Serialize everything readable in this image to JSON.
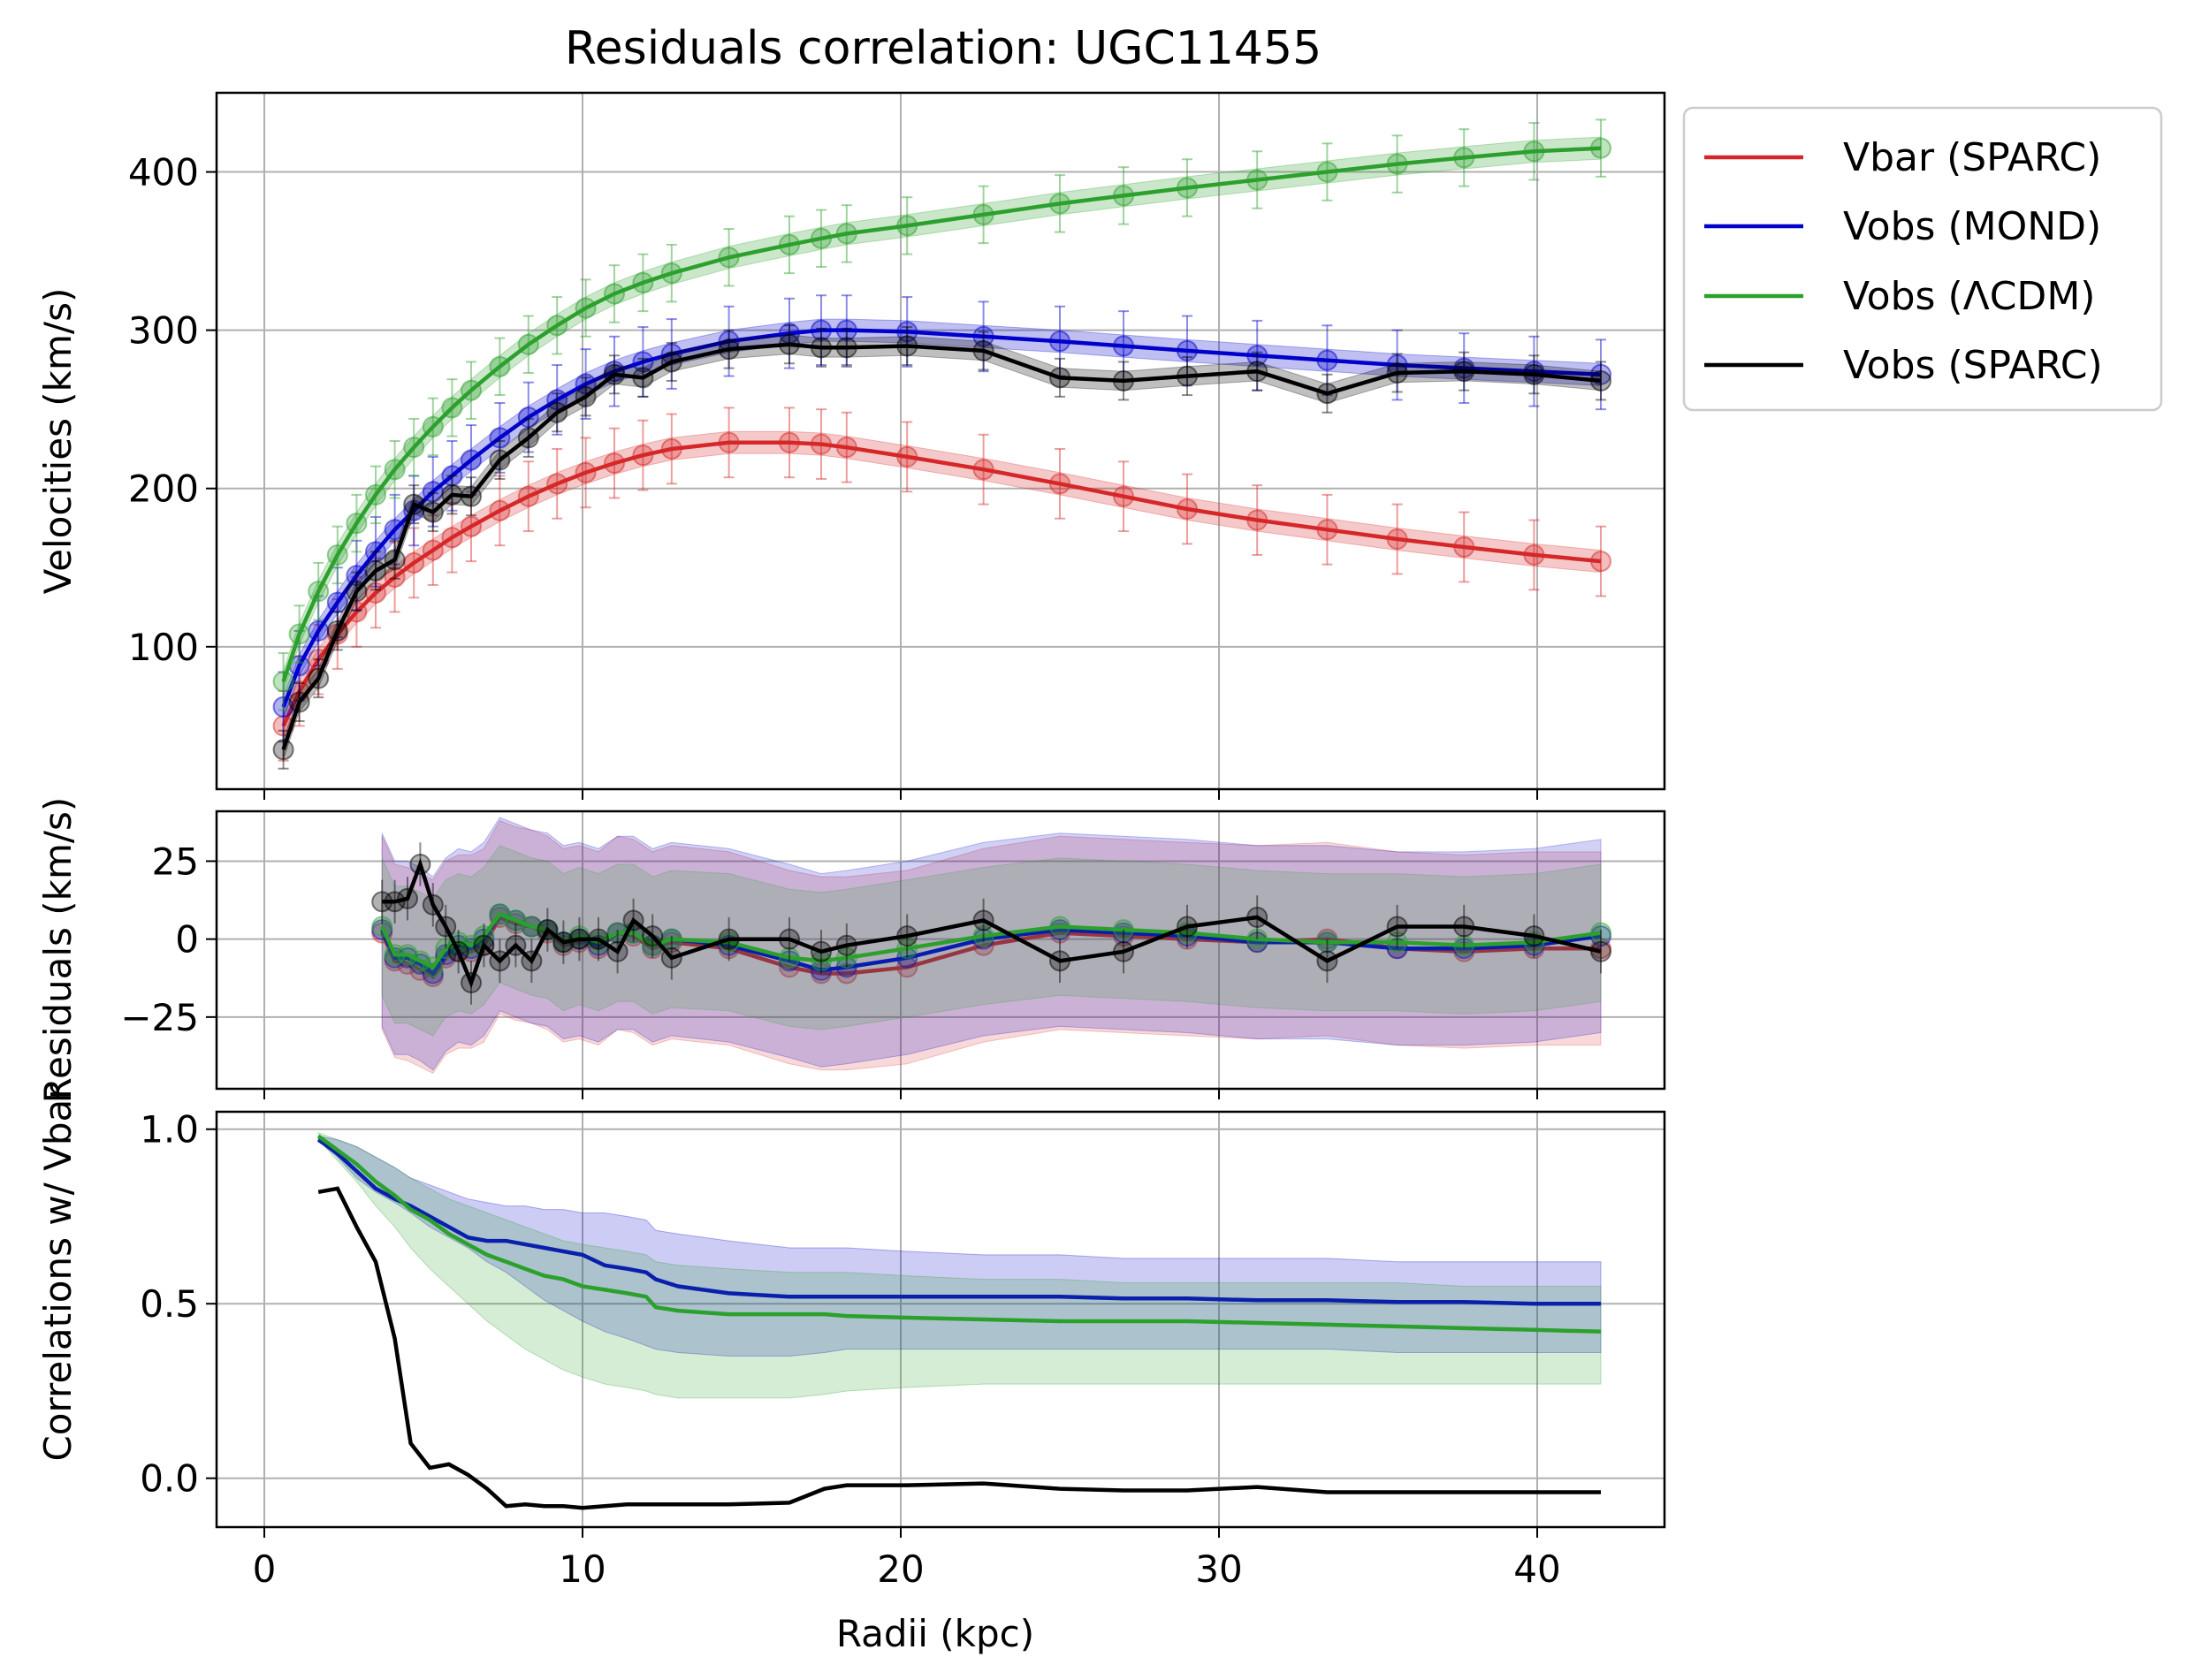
{
  "title": "Residuals correlation: UGC11455",
  "xlabel": "Radii (kpc)",
  "x_ticks": [
    "0",
    "10",
    "20",
    "30",
    "40"
  ],
  "legend": [
    "Vbar (SPARC)",
    "Vobs (MOND)",
    "Vobs (ΛCDM)",
    "Vobs (SPARC)"
  ],
  "colors": {
    "vbar": "#d62728",
    "mond": "#0000cc",
    "lcdm": "#2ca02c",
    "sparc": "#000000"
  },
  "chart_data": [
    {
      "type": "line",
      "panel": "velocities",
      "title": "Residuals correlation: UGC11455",
      "ylabel": "Velocities (km/s)",
      "xlim": [
        -1.5,
        44
      ],
      "ylim": [
        10,
        450
      ],
      "y_ticks": [
        "100",
        "200",
        "300",
        "400"
      ],
      "x": [
        0.6,
        1.1,
        1.7,
        2.3,
        2.9,
        3.5,
        4.1,
        4.7,
        5.3,
        5.9,
        6.5,
        7.4,
        8.3,
        9.2,
        10.1,
        11.0,
        11.9,
        12.8,
        14.6,
        16.5,
        17.5,
        18.3,
        20.2,
        22.6,
        25.0,
        27.0,
        29.0,
        31.2,
        33.4,
        35.6,
        37.7,
        39.9,
        42.0
      ],
      "series": [
        {
          "name": "Vbar (SPARC)",
          "values": [
            50,
            72,
            92,
            108,
            122,
            134,
            144,
            153,
            161,
            169,
            176,
            186,
            195,
            203,
            210,
            216,
            221,
            225,
            229,
            229,
            228,
            226,
            220,
            212,
            203,
            195,
            187,
            180,
            174,
            168,
            163,
            158,
            154
          ],
          "error": 22
        },
        {
          "name": "Vobs (MOND)",
          "values": [
            62,
            88,
            110,
            128,
            145,
            160,
            174,
            186,
            198,
            208,
            218,
            232,
            245,
            256,
            266,
            274,
            280,
            285,
            293,
            298,
            300,
            300,
            299,
            296,
            293,
            290,
            287,
            284,
            281,
            278,
            276,
            274,
            272
          ],
          "error": 22
        },
        {
          "name": "Vobs (ΛCDM)",
          "values": [
            78,
            108,
            135,
            158,
            178,
            196,
            212,
            226,
            239,
            251,
            262,
            277,
            291,
            303,
            314,
            323,
            330,
            336,
            346,
            354,
            358,
            361,
            366,
            373,
            380,
            385,
            390,
            395,
            400,
            405,
            409,
            413,
            415
          ],
          "error": 18
        },
        {
          "name": "Vobs (SPARC)",
          "values": [
            35,
            65,
            80,
            110,
            135,
            148,
            155,
            190,
            185,
            196,
            195,
            218,
            232,
            248,
            258,
            272,
            270,
            280,
            288,
            291,
            289,
            289,
            290,
            287,
            270,
            268,
            271,
            274,
            260,
            273,
            274,
            272,
            268
          ],
          "error": 12
        }
      ]
    },
    {
      "type": "line",
      "panel": "residuals",
      "ylabel": "Residuals (km/s)",
      "xlim": [
        -1.5,
        44
      ],
      "ylim": [
        -48,
        41
      ],
      "y_ticks": [
        "−25",
        "0",
        "25"
      ],
      "x": [
        3.7,
        4.1,
        4.5,
        4.9,
        5.3,
        5.7,
        6.1,
        6.5,
        6.9,
        7.4,
        7.9,
        8.4,
        8.9,
        9.4,
        9.9,
        10.5,
        11.1,
        11.6,
        12.2,
        12.8,
        14.6,
        16.5,
        17.5,
        18.3,
        20.2,
        22.6,
        25.0,
        27.0,
        29.0,
        31.2,
        33.4,
        35.6,
        37.7,
        39.9,
        42.0
      ],
      "series": [
        {
          "name": "Vbar (SPARC)",
          "values": [
            2,
            -7,
            -8,
            -10,
            -12,
            -6,
            -4,
            -4,
            -2,
            7,
            5,
            4,
            2,
            -2,
            -1,
            -3,
            2,
            1,
            -3,
            -1,
            -3,
            -9,
            -11,
            -11,
            -9,
            -2,
            2,
            1,
            0,
            -1,
            0,
            -3,
            -4,
            -3,
            -3
          ],
          "band": 31
        },
        {
          "name": "Vobs (MOND)",
          "values": [
            3,
            -6,
            -6,
            -8,
            -11,
            -5,
            -2,
            -3,
            0,
            8,
            6,
            4,
            3,
            -1,
            0,
            -2,
            2,
            2,
            -2,
            0,
            -2,
            -7,
            -10,
            -9,
            -6,
            0,
            3,
            2,
            1,
            -1,
            -1,
            -3,
            -3,
            -2,
            1
          ],
          "band": 31
        },
        {
          "name": "Vobs (ΛCDM)",
          "values": [
            4,
            -5,
            -5,
            -7,
            -9,
            -3,
            -1,
            -2,
            1,
            8,
            6,
            4,
            3,
            -1,
            1,
            -1,
            2,
            2,
            -2,
            0,
            -1,
            -6,
            -7,
            -6,
            -3,
            1,
            4,
            3,
            2,
            0,
            -1,
            -1,
            -2,
            -1,
            2
          ],
          "band": 22
        },
        {
          "name": "Vobs (SPARC)",
          "values": [
            12,
            12,
            13,
            24,
            11,
            4,
            -4,
            -14,
            -2,
            -7,
            -2,
            -7,
            3,
            -1,
            0,
            0,
            -4,
            6,
            1,
            -6,
            0,
            0,
            -4,
            -2,
            1,
            6,
            -7,
            -4,
            4,
            7,
            -7,
            4,
            4,
            1,
            -4
          ],
          "error": 7
        }
      ]
    },
    {
      "type": "line",
      "panel": "correlations",
      "ylabel": "Correlations w/ Vbar",
      "xlim": [
        -1.5,
        44
      ],
      "ylim": [
        -0.14,
        1.05
      ],
      "y_ticks": [
        "0.0",
        "0.5",
        "1.0"
      ],
      "x": [
        1.7,
        2.3,
        2.9,
        3.5,
        4.1,
        4.6,
        5.2,
        5.8,
        6.4,
        7.0,
        7.6,
        8.2,
        8.8,
        9.4,
        10.0,
        10.7,
        11.4,
        12.0,
        12.3,
        13.0,
        14.6,
        16.5,
        17.6,
        18.3,
        20.2,
        22.6,
        25.0,
        27.0,
        29.0,
        31.2,
        33.4,
        35.6,
        37.7,
        39.9,
        42.0
      ],
      "series": [
        {
          "name": "Vobs (MOND)",
          "values": [
            0.97,
            0.93,
            0.88,
            0.83,
            0.8,
            0.78,
            0.75,
            0.72,
            0.69,
            0.68,
            0.68,
            0.67,
            0.66,
            0.65,
            0.64,
            0.61,
            0.6,
            0.59,
            0.57,
            0.55,
            0.53,
            0.52,
            0.52,
            0.52,
            0.52,
            0.52,
            0.52,
            0.515,
            0.515,
            0.51,
            0.51,
            0.505,
            0.505,
            0.5,
            0.5
          ],
          "lower": [
            0.97,
            0.92,
            0.86,
            0.82,
            0.79,
            0.76,
            0.72,
            0.69,
            0.66,
            0.62,
            0.59,
            0.55,
            0.51,
            0.48,
            0.45,
            0.42,
            0.4,
            0.38,
            0.37,
            0.36,
            0.35,
            0.35,
            0.36,
            0.37,
            0.37,
            0.37,
            0.37,
            0.37,
            0.37,
            0.37,
            0.37,
            0.36,
            0.36,
            0.36,
            0.36
          ],
          "upper": [
            0.98,
            0.97,
            0.95,
            0.92,
            0.89,
            0.86,
            0.84,
            0.82,
            0.8,
            0.79,
            0.78,
            0.78,
            0.77,
            0.77,
            0.76,
            0.76,
            0.75,
            0.74,
            0.71,
            0.7,
            0.68,
            0.66,
            0.66,
            0.66,
            0.65,
            0.64,
            0.64,
            0.63,
            0.63,
            0.63,
            0.63,
            0.62,
            0.62,
            0.62,
            0.62
          ]
        },
        {
          "name": "Vobs (ΛCDM)",
          "values": [
            0.98,
            0.94,
            0.9,
            0.85,
            0.81,
            0.77,
            0.74,
            0.7,
            0.67,
            0.64,
            0.62,
            0.6,
            0.58,
            0.57,
            0.55,
            0.54,
            0.53,
            0.52,
            0.49,
            0.48,
            0.47,
            0.47,
            0.47,
            0.465,
            0.46,
            0.455,
            0.45,
            0.45,
            0.45,
            0.445,
            0.44,
            0.435,
            0.43,
            0.425,
            0.42
          ],
          "lower": [
            0.97,
            0.91,
            0.85,
            0.78,
            0.72,
            0.66,
            0.6,
            0.55,
            0.5,
            0.45,
            0.41,
            0.37,
            0.34,
            0.31,
            0.29,
            0.27,
            0.26,
            0.25,
            0.24,
            0.23,
            0.23,
            0.23,
            0.24,
            0.25,
            0.26,
            0.27,
            0.27,
            0.27,
            0.27,
            0.27,
            0.27,
            0.27,
            0.27,
            0.27,
            0.27
          ],
          "upper": [
            0.99,
            0.97,
            0.95,
            0.92,
            0.89,
            0.86,
            0.83,
            0.8,
            0.78,
            0.76,
            0.74,
            0.72,
            0.7,
            0.68,
            0.67,
            0.66,
            0.65,
            0.64,
            0.62,
            0.61,
            0.6,
            0.59,
            0.59,
            0.59,
            0.58,
            0.57,
            0.57,
            0.56,
            0.56,
            0.56,
            0.56,
            0.56,
            0.55,
            0.55,
            0.55
          ]
        },
        {
          "name": "Vobs (SPARC)",
          "values": [
            0.82,
            0.83,
            0.72,
            0.62,
            0.4,
            0.1,
            0.03,
            0.04,
            0.01,
            -0.03,
            -0.08,
            -0.075,
            -0.08,
            -0.08,
            -0.085,
            -0.08,
            -0.075,
            -0.075,
            -0.075,
            -0.075,
            -0.075,
            -0.07,
            -0.03,
            -0.02,
            -0.02,
            -0.015,
            -0.03,
            -0.035,
            -0.035,
            -0.025,
            -0.04,
            -0.04,
            -0.04,
            -0.04,
            -0.04
          ]
        }
      ]
    }
  ]
}
